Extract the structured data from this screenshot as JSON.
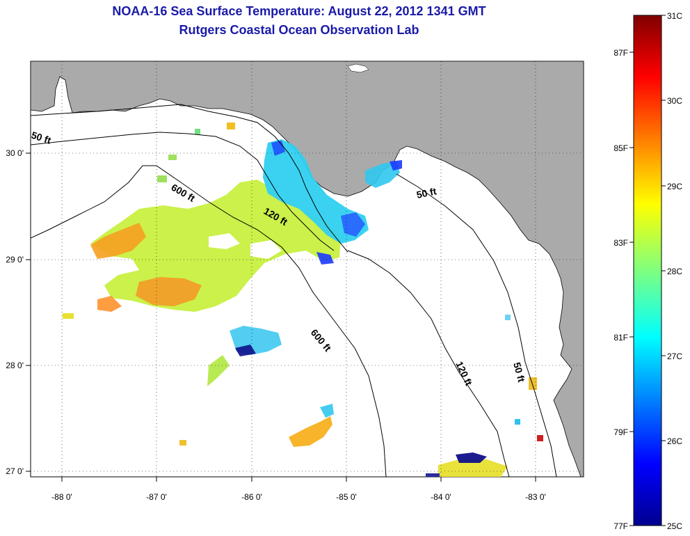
{
  "title": "NOAA-16 Sea Surface Temperature:  August 22, 2012 1341 GMT",
  "subtitle": "Rutgers Coastal Ocean Observation Lab",
  "axes": {
    "x_ticks": [
      "-88 0'",
      "-87 0'",
      "-86 0'",
      "-85 0'",
      "-84 0'",
      "-83 0'"
    ],
    "y_ticks": [
      "30 0'",
      "29 0'",
      "28 0'",
      "27 0'"
    ]
  },
  "contours": {
    "c50_west": "50 ft",
    "c600_north": "600 ft",
    "c120_north": "120 ft",
    "c50_east": "50 ft",
    "c600_south": "600 ft",
    "c120_south": "120 ft",
    "c50_south": "50 ft"
  },
  "colorbar": {
    "fahrenheit": [
      "87F",
      "85F",
      "83F",
      "81F",
      "79F",
      "77F"
    ],
    "celsius": [
      "31C",
      "30C",
      "29C",
      "28C",
      "27C",
      "26C",
      "25C"
    ]
  },
  "colors": {
    "land": "#aaaaaa",
    "ocean": "#ffffff",
    "title": "#1a1aa8"
  }
}
